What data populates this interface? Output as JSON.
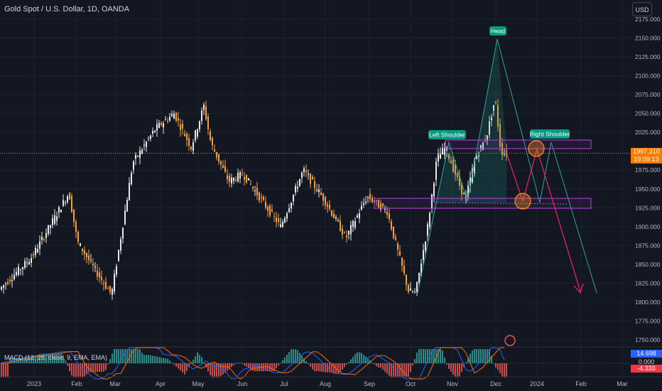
{
  "header": {
    "symbol_title": "Gold Spot / U.S. Dollar, 1D, OANDA",
    "currency_button": "USD"
  },
  "colors": {
    "background": "#131722",
    "up_candle": "#e8e8e8",
    "down_candle": "#f5a032",
    "grid": "#1e222d",
    "pattern_fill": "#26a69a",
    "pattern_line": "#26a69a",
    "zone_border": "#c040e0",
    "arrow_pink": "#e91e63",
    "circle_orange": "#f7931a",
    "label_teal": "#089981",
    "macd_up": "#26a69a",
    "macd_down": "#ef5350",
    "price_tag": "#f57c00",
    "macd_tag_blue": "#2962ff",
    "macd_tag_red": "#f23645"
  },
  "price_axis": {
    "ticks": [
      "2175.000",
      "2150.000",
      "2125.000",
      "2100.000",
      "2075.000",
      "2050.000",
      "2025.000",
      "1975.000",
      "1950.000",
      "1925.000",
      "1900.000",
      "1875.000",
      "1850.000",
      "1825.000",
      "1800.000",
      "1775.000",
      "1750.000"
    ],
    "current_price": "1997.310",
    "countdown": "19:09:13"
  },
  "time_axis": {
    "labels": [
      "2023",
      "Feb",
      "Mar",
      "Apr",
      "May",
      "Jun",
      "Jul",
      "Aug",
      "Sep",
      "Oct",
      "Nov",
      "Dec",
      "2024",
      "Feb",
      "Mar"
    ]
  },
  "annotations": {
    "head": "Head",
    "left_shoulder": "Left Shoulder",
    "right_shoulder": "Right Shoulder"
  },
  "macd": {
    "label": "MACD (12, 26, close, 9, EMA, EMA)",
    "value1": "14.698",
    "value2": "0.000",
    "value3": "-4.333"
  },
  "chart_data": {
    "type": "candlestick",
    "title": "Gold Spot / U.S. Dollar, 1D, OANDA",
    "ylim": [
      1750,
      2180
    ],
    "x_labels": [
      "2023",
      "Feb",
      "Mar",
      "Apr",
      "May",
      "Jun",
      "Jul",
      "Aug",
      "Sep",
      "Oct",
      "Nov",
      "Dec",
      "2024",
      "Feb",
      "Mar"
    ],
    "approx_path": [
      {
        "x": "Jan 1",
        "y": 1815
      },
      {
        "x": "Jan 25",
        "y": 1945
      },
      {
        "x": "Feb 3",
        "y": 1880
      },
      {
        "x": "Feb 28",
        "y": 1810
      },
      {
        "x": "Mar 20",
        "y": 1985
      },
      {
        "x": "Apr 13",
        "y": 2030
      },
      {
        "x": "May 4",
        "y": 2060
      },
      {
        "x": "May 30",
        "y": 1960
      },
      {
        "x": "Jun 29",
        "y": 1900
      },
      {
        "x": "Jul 20",
        "y": 1975
      },
      {
        "x": "Aug 21",
        "y": 1885
      },
      {
        "x": "Sep 1",
        "y": 1940
      },
      {
        "x": "Oct 5",
        "y": 1815
      },
      {
        "x": "Oct 27",
        "y": 2005
      },
      {
        "x": "Nov 13",
        "y": 1935
      },
      {
        "x": "Dec 4",
        "y": 2070
      },
      {
        "x": "Dec 13",
        "y": 1997
      }
    ],
    "zones": [
      {
        "from": 1997,
        "to": 2010
      },
      {
        "from": 1924,
        "to": 1938
      }
    ],
    "current_price": 1997.31
  }
}
